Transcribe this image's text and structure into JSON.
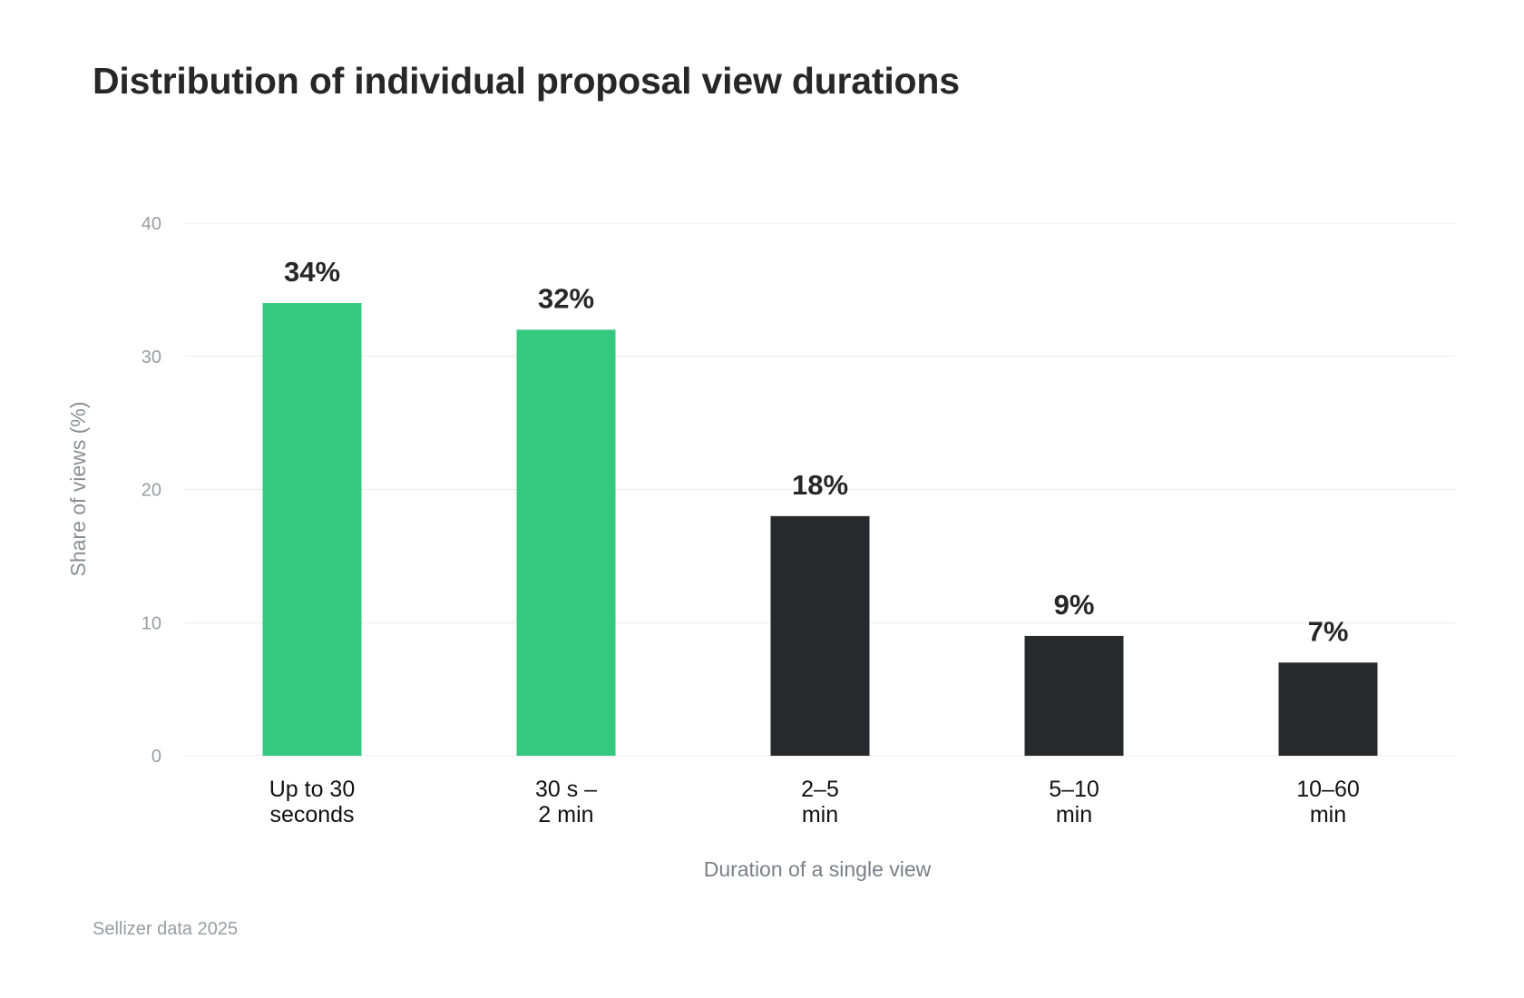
{
  "chart_data": {
    "type": "bar",
    "title": "Distribution of individual proposal view durations",
    "xlabel": "Duration of a single view",
    "ylabel": "Share of views (%)",
    "categories": [
      [
        "Up to 30",
        "seconds"
      ],
      [
        "30 s –",
        "2 min"
      ],
      [
        "2–5",
        "min"
      ],
      [
        "5–10",
        "min"
      ],
      [
        "10–60",
        "min"
      ]
    ],
    "values": [
      34,
      32,
      18,
      9,
      7
    ],
    "data_labels": [
      "34%",
      "32%",
      "18%",
      "9%",
      "7%"
    ],
    "ylim": [
      0,
      40
    ],
    "yticks": [
      "0",
      "10",
      "20",
      "30",
      "40"
    ],
    "grid": true,
    "bar_colors": [
      "#34c97f",
      "#34c97f",
      "#28292d",
      "#28292d",
      "#28292d"
    ]
  },
  "source": "Sellizer data 2025"
}
